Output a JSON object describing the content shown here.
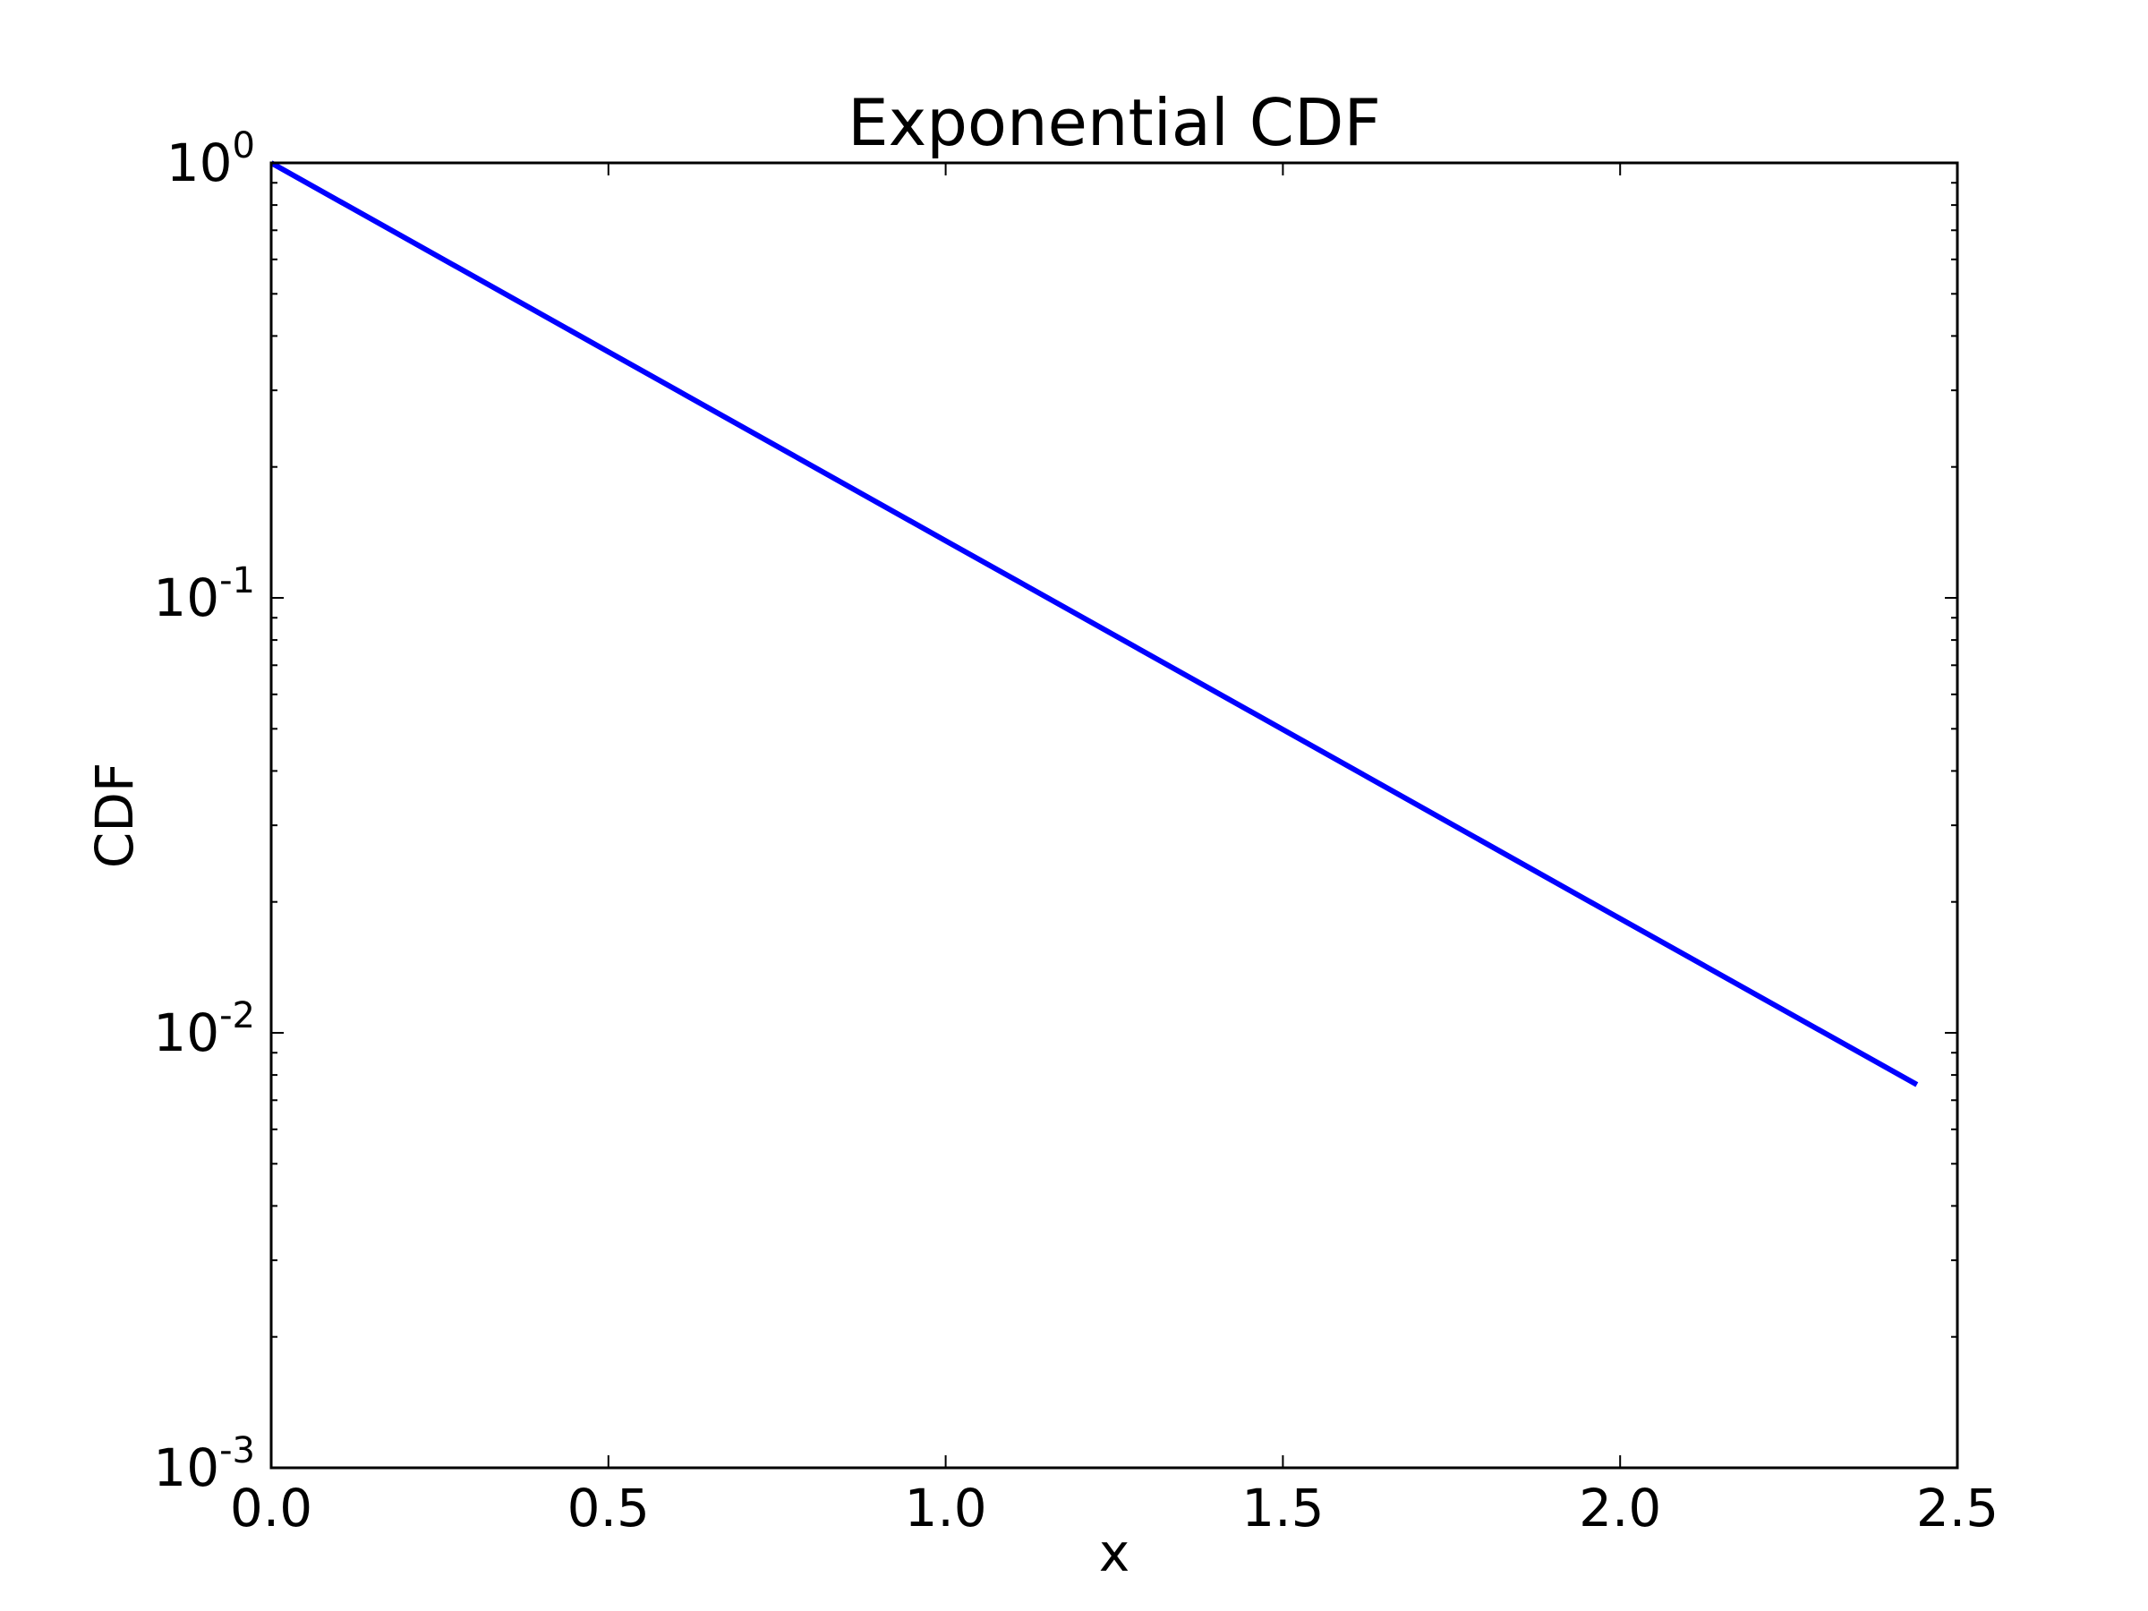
{
  "chart_data": {
    "type": "line",
    "title": "Exponential CDF",
    "xlabel": "x",
    "ylabel": "CDF",
    "xlim": [
      0.0,
      2.5
    ],
    "ylim": [
      0.001,
      1
    ],
    "yscale": "log",
    "grid": false,
    "x_ticks": [
      {
        "value": 0.0,
        "label": "0.0"
      },
      {
        "value": 0.5,
        "label": "0.5"
      },
      {
        "value": 1.0,
        "label": "1.0"
      },
      {
        "value": 1.5,
        "label": "1.5"
      },
      {
        "value": 2.0,
        "label": "2.0"
      },
      {
        "value": 2.5,
        "label": "2.5"
      }
    ],
    "y_ticks": [
      {
        "value": 1,
        "base": "10",
        "exponent": "0"
      },
      {
        "value": 0.1,
        "base": "10",
        "exponent": "-1"
      },
      {
        "value": 0.01,
        "base": "10",
        "exponent": "-2"
      },
      {
        "value": 0.001,
        "base": "10",
        "exponent": "-3"
      }
    ],
    "series": [
      {
        "color": "#0000ff",
        "x": [
          0.0,
          0.5,
          1.0,
          1.5,
          2.0,
          2.44
        ],
        "y": [
          1.0,
          0.3679,
          0.1353,
          0.0498,
          0.0183,
          0.0076
        ]
      }
    ]
  }
}
